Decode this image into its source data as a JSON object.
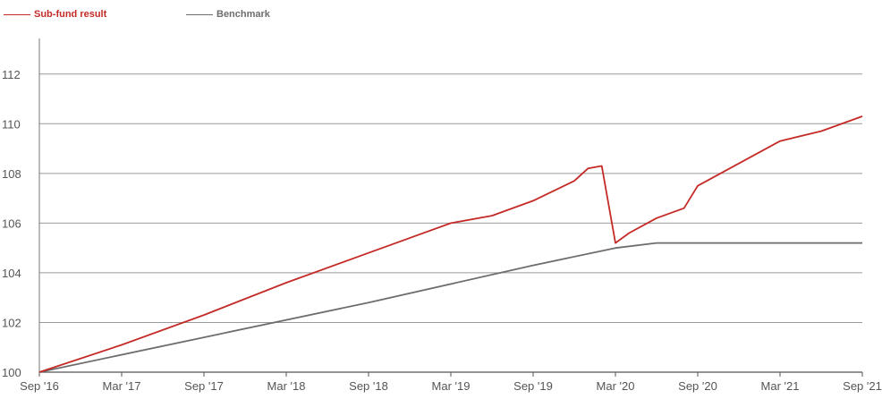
{
  "chart_data": {
    "type": "line",
    "title": "",
    "xlabel": "",
    "ylabel": "",
    "x_ticks": [
      "Sep '16",
      "Mar '17",
      "Sep '17",
      "Mar '18",
      "Sep '18",
      "Mar '19",
      "Sep '19",
      "Mar '20",
      "Sep '20",
      "Mar '21",
      "Sep '21"
    ],
    "xlim": [
      "2016-09",
      "2021-09"
    ],
    "y_ticks": [
      100,
      102,
      104,
      106,
      108,
      110,
      112
    ],
    "ylim": [
      100,
      113
    ],
    "grid": "horizontal",
    "legend_position": "top-left",
    "series": [
      {
        "name": "Sub-fund result",
        "color": "#c42b27",
        "x": [
          "2016-09",
          "2017-03",
          "2017-09",
          "2018-03",
          "2018-09",
          "2019-03",
          "2019-06",
          "2019-09",
          "2019-12",
          "2020-01",
          "2020-02",
          "2020-03",
          "2020-04",
          "2020-06",
          "2020-08",
          "2020-09",
          "2020-12",
          "2021-03",
          "2021-06",
          "2021-09"
        ],
        "values": [
          100.0,
          101.1,
          102.3,
          103.6,
          104.8,
          106.0,
          106.3,
          106.9,
          107.7,
          108.2,
          108.3,
          105.2,
          105.6,
          106.2,
          106.6,
          107.5,
          108.4,
          109.3,
          109.7,
          110.3
        ]
      },
      {
        "name": "Benchmark",
        "color": "#6d6d6d",
        "x": [
          "2016-09",
          "2017-09",
          "2018-09",
          "2019-09",
          "2020-03",
          "2020-06",
          "2021-09"
        ],
        "values": [
          100.0,
          101.4,
          102.8,
          104.3,
          105.0,
          105.2,
          105.2
        ]
      }
    ]
  }
}
